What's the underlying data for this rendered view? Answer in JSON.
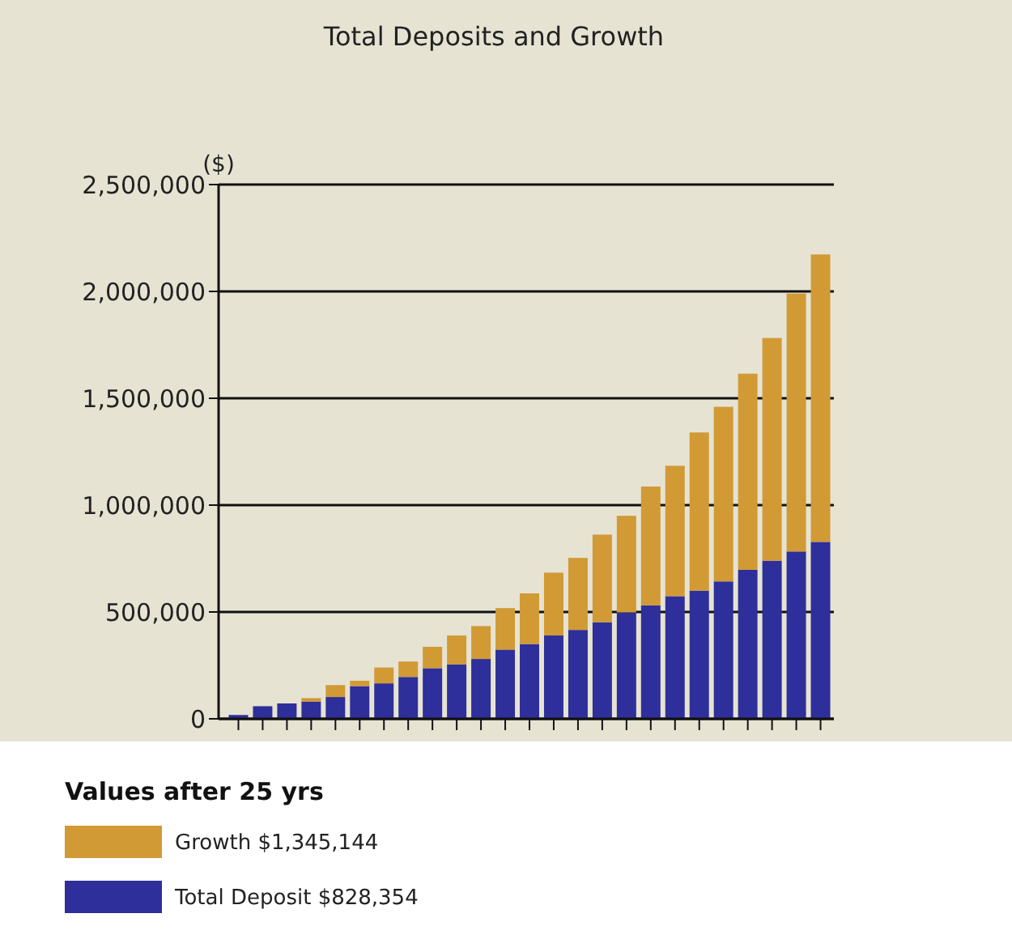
{
  "chart_data": {
    "type": "bar",
    "title": "Total Deposits and Growth",
    "ylabel": "($)",
    "legend_title": "Values after 25 yrs",
    "categories": [
      null,
      null,
      null,
      null,
      null,
      null,
      null,
      null,
      null,
      null,
      null,
      null,
      null,
      null,
      null,
      null,
      null,
      null,
      null,
      null,
      null,
      null,
      null,
      null,
      null
    ],
    "stacked": true,
    "series": [
      {
        "name": "Total Deposit $828,354",
        "color": "#2e2f9a",
        "values": [
          18000,
          59000,
          72000,
          81000,
          102000,
          153000,
          166000,
          196000,
          237000,
          255000,
          280000,
          324000,
          350000,
          390000,
          416000,
          452000,
          498000,
          531000,
          574000,
          600000,
          643000,
          697000,
          740000,
          783000,
          828000
        ]
      },
      {
        "name": "Growth $1,345,144",
        "color": "#d19a35",
        "values": [
          0,
          0,
          0,
          16000,
          56000,
          25000,
          74000,
          72000,
          100000,
          135000,
          154000,
          194000,
          237000,
          294000,
          337000,
          410000,
          452000,
          556000,
          610000,
          740000,
          817000,
          918000,
          1042000,
          1207000,
          1345000
        ]
      }
    ],
    "ylim": [
      0,
      2500000
    ],
    "yticks": [
      {
        "value": 0,
        "label": "0"
      },
      {
        "value": 500000,
        "label": "500,000"
      },
      {
        "value": 1000000,
        "label": "1,000,000"
      },
      {
        "value": 1500000,
        "label": "1,500,000"
      },
      {
        "value": 2000000,
        "label": "2,000,000"
      },
      {
        "value": 2500000,
        "label": "2,500,000"
      }
    ],
    "grid": "y",
    "legend": "bottom"
  }
}
